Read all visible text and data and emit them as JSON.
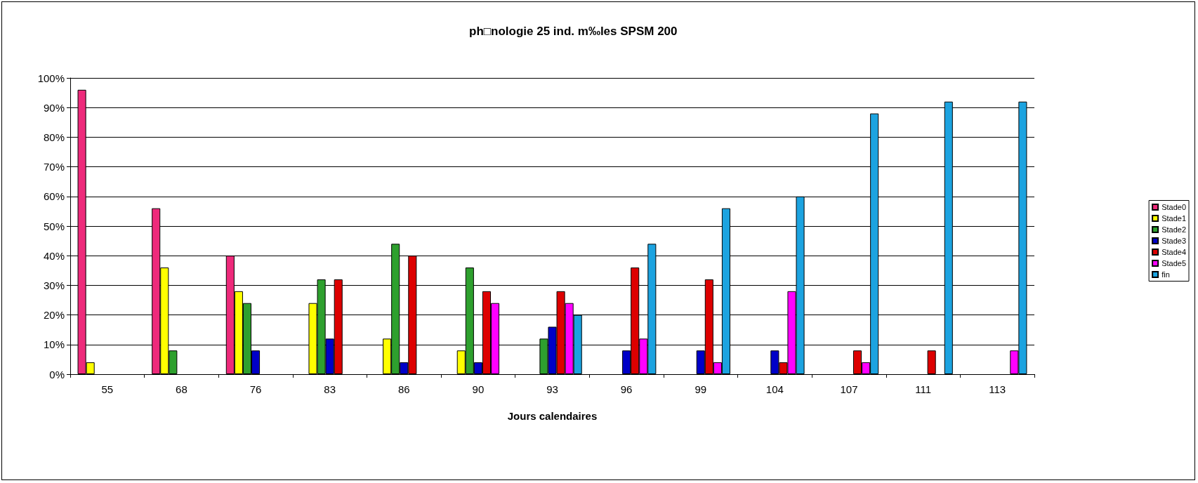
{
  "chart_data": {
    "type": "bar",
    "title": "ph□nologie 25 ind. m‰les SPSM 200",
    "xlabel": "Jours calendaires",
    "categories": [
      "55",
      "68",
      "76",
      "83",
      "86",
      "90",
      "93",
      "96",
      "99",
      "104",
      "107",
      "111",
      "113"
    ],
    "series": [
      {
        "name": "Stade0",
        "color": "#ee2a7b",
        "values": [
          96,
          56,
          40,
          0,
          0,
          0,
          0,
          0,
          0,
          0,
          0,
          0,
          0
        ]
      },
      {
        "name": "Stade1",
        "color": "#ffff00",
        "values": [
          4,
          36,
          28,
          24,
          12,
          8,
          0,
          0,
          0,
          0,
          0,
          0,
          0
        ]
      },
      {
        "name": "Stade2",
        "color": "#2ea02e",
        "values": [
          0,
          8,
          24,
          32,
          44,
          36,
          12,
          0,
          0,
          0,
          0,
          0,
          0
        ]
      },
      {
        "name": "Stade3",
        "color": "#0000c8",
        "values": [
          0,
          0,
          8,
          12,
          4,
          4,
          16,
          8,
          8,
          8,
          0,
          0,
          0
        ]
      },
      {
        "name": "Stade4",
        "color": "#dd0000",
        "values": [
          0,
          0,
          0,
          32,
          40,
          28,
          28,
          36,
          32,
          4,
          8,
          8,
          0
        ]
      },
      {
        "name": "Stade5",
        "color": "#ff00ff",
        "values": [
          0,
          0,
          0,
          0,
          0,
          24,
          24,
          12,
          4,
          28,
          4,
          0,
          8
        ]
      },
      {
        "name": "fin",
        "color": "#1ca3e0",
        "values": [
          0,
          0,
          0,
          0,
          0,
          0,
          20,
          44,
          56,
          60,
          88,
          92,
          92
        ]
      }
    ],
    "ylim": [
      0,
      100
    ],
    "yticks": [
      {
        "value": 0,
        "label": "0%"
      },
      {
        "value": 10,
        "label": "10%"
      },
      {
        "value": 20,
        "label": "20%"
      },
      {
        "value": 30,
        "label": "30%"
      },
      {
        "value": 40,
        "label": "40%"
      },
      {
        "value": 50,
        "label": "50%"
      },
      {
        "value": 60,
        "label": "60%"
      },
      {
        "value": 70,
        "label": "70%"
      },
      {
        "value": 80,
        "label": "80%"
      },
      {
        "value": 90,
        "label": "90%"
      },
      {
        "value": 100,
        "label": "100%"
      }
    ],
    "grid": "y",
    "legend": "right"
  }
}
